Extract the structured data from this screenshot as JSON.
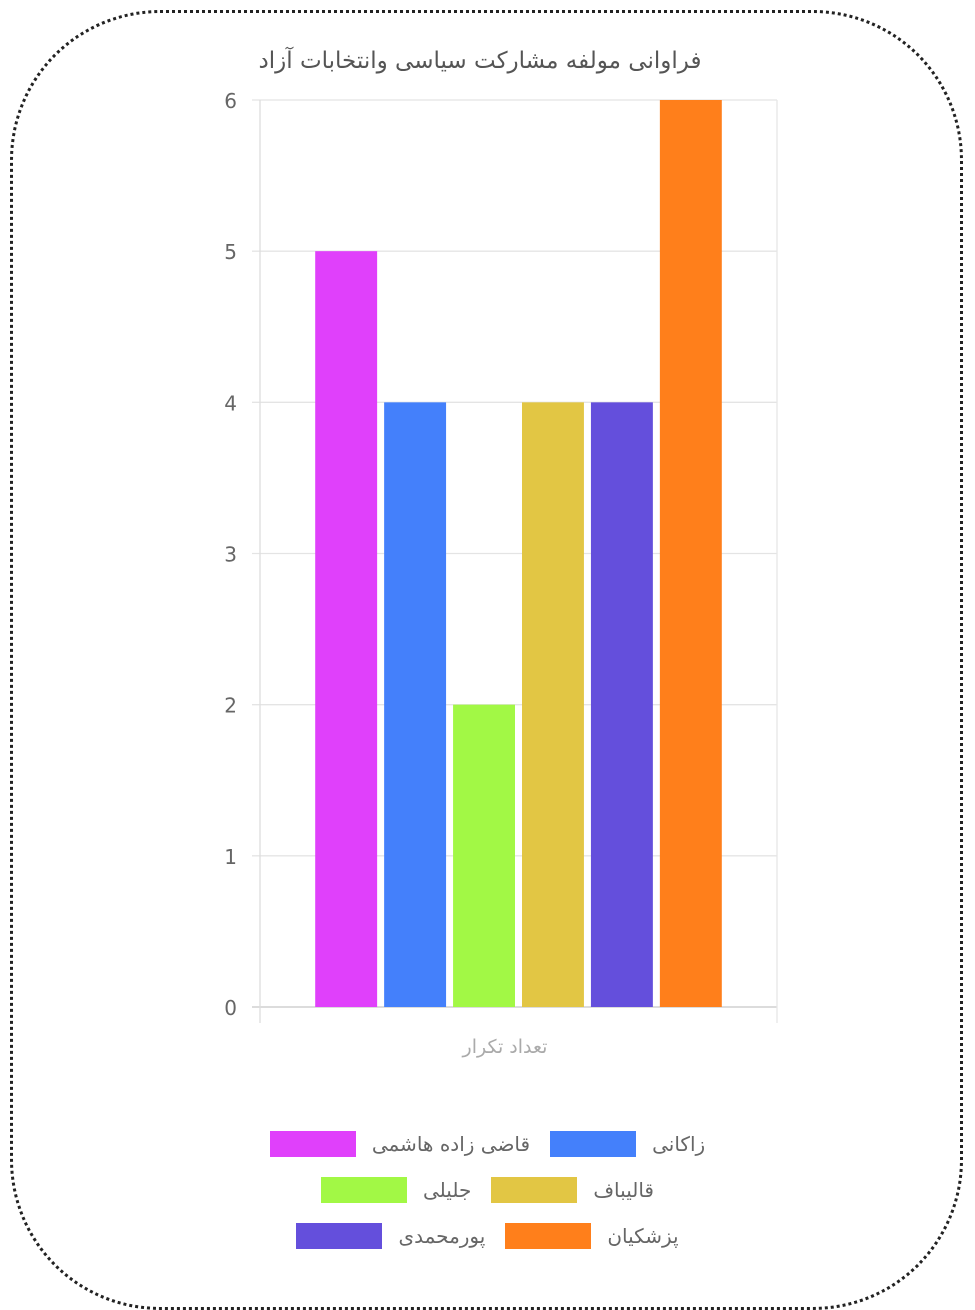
{
  "chart_data": {
    "type": "bar",
    "title": "فراوانی مولفه مشارکت سیاسی وانتخابات آزاد",
    "categories": [
      "تعداد تکرار"
    ],
    "xlabel": "",
    "ylabel": "",
    "ylim": [
      0,
      6
    ],
    "yticks": [
      0,
      1,
      2,
      3,
      4,
      5,
      6
    ],
    "grid": true,
    "legend_position": "bottom",
    "series": [
      {
        "name": "قاضی زاده هاشمی",
        "values": [
          5
        ],
        "color": "#E040FB"
      },
      {
        "name": "زاکانی",
        "values": [
          4
        ],
        "color": "#4480FB"
      },
      {
        "name": "جلیلی",
        "values": [
          2
        ],
        "color": "#A2F845"
      },
      {
        "name": "قالیباف",
        "values": [
          4
        ],
        "color": "#E2C644"
      },
      {
        "name": "پورمحمدی",
        "values": [
          4
        ],
        "color": "#644FDC"
      },
      {
        "name": "پزشکیان",
        "values": [
          6
        ],
        "color": "#FF7F1B"
      }
    ]
  }
}
